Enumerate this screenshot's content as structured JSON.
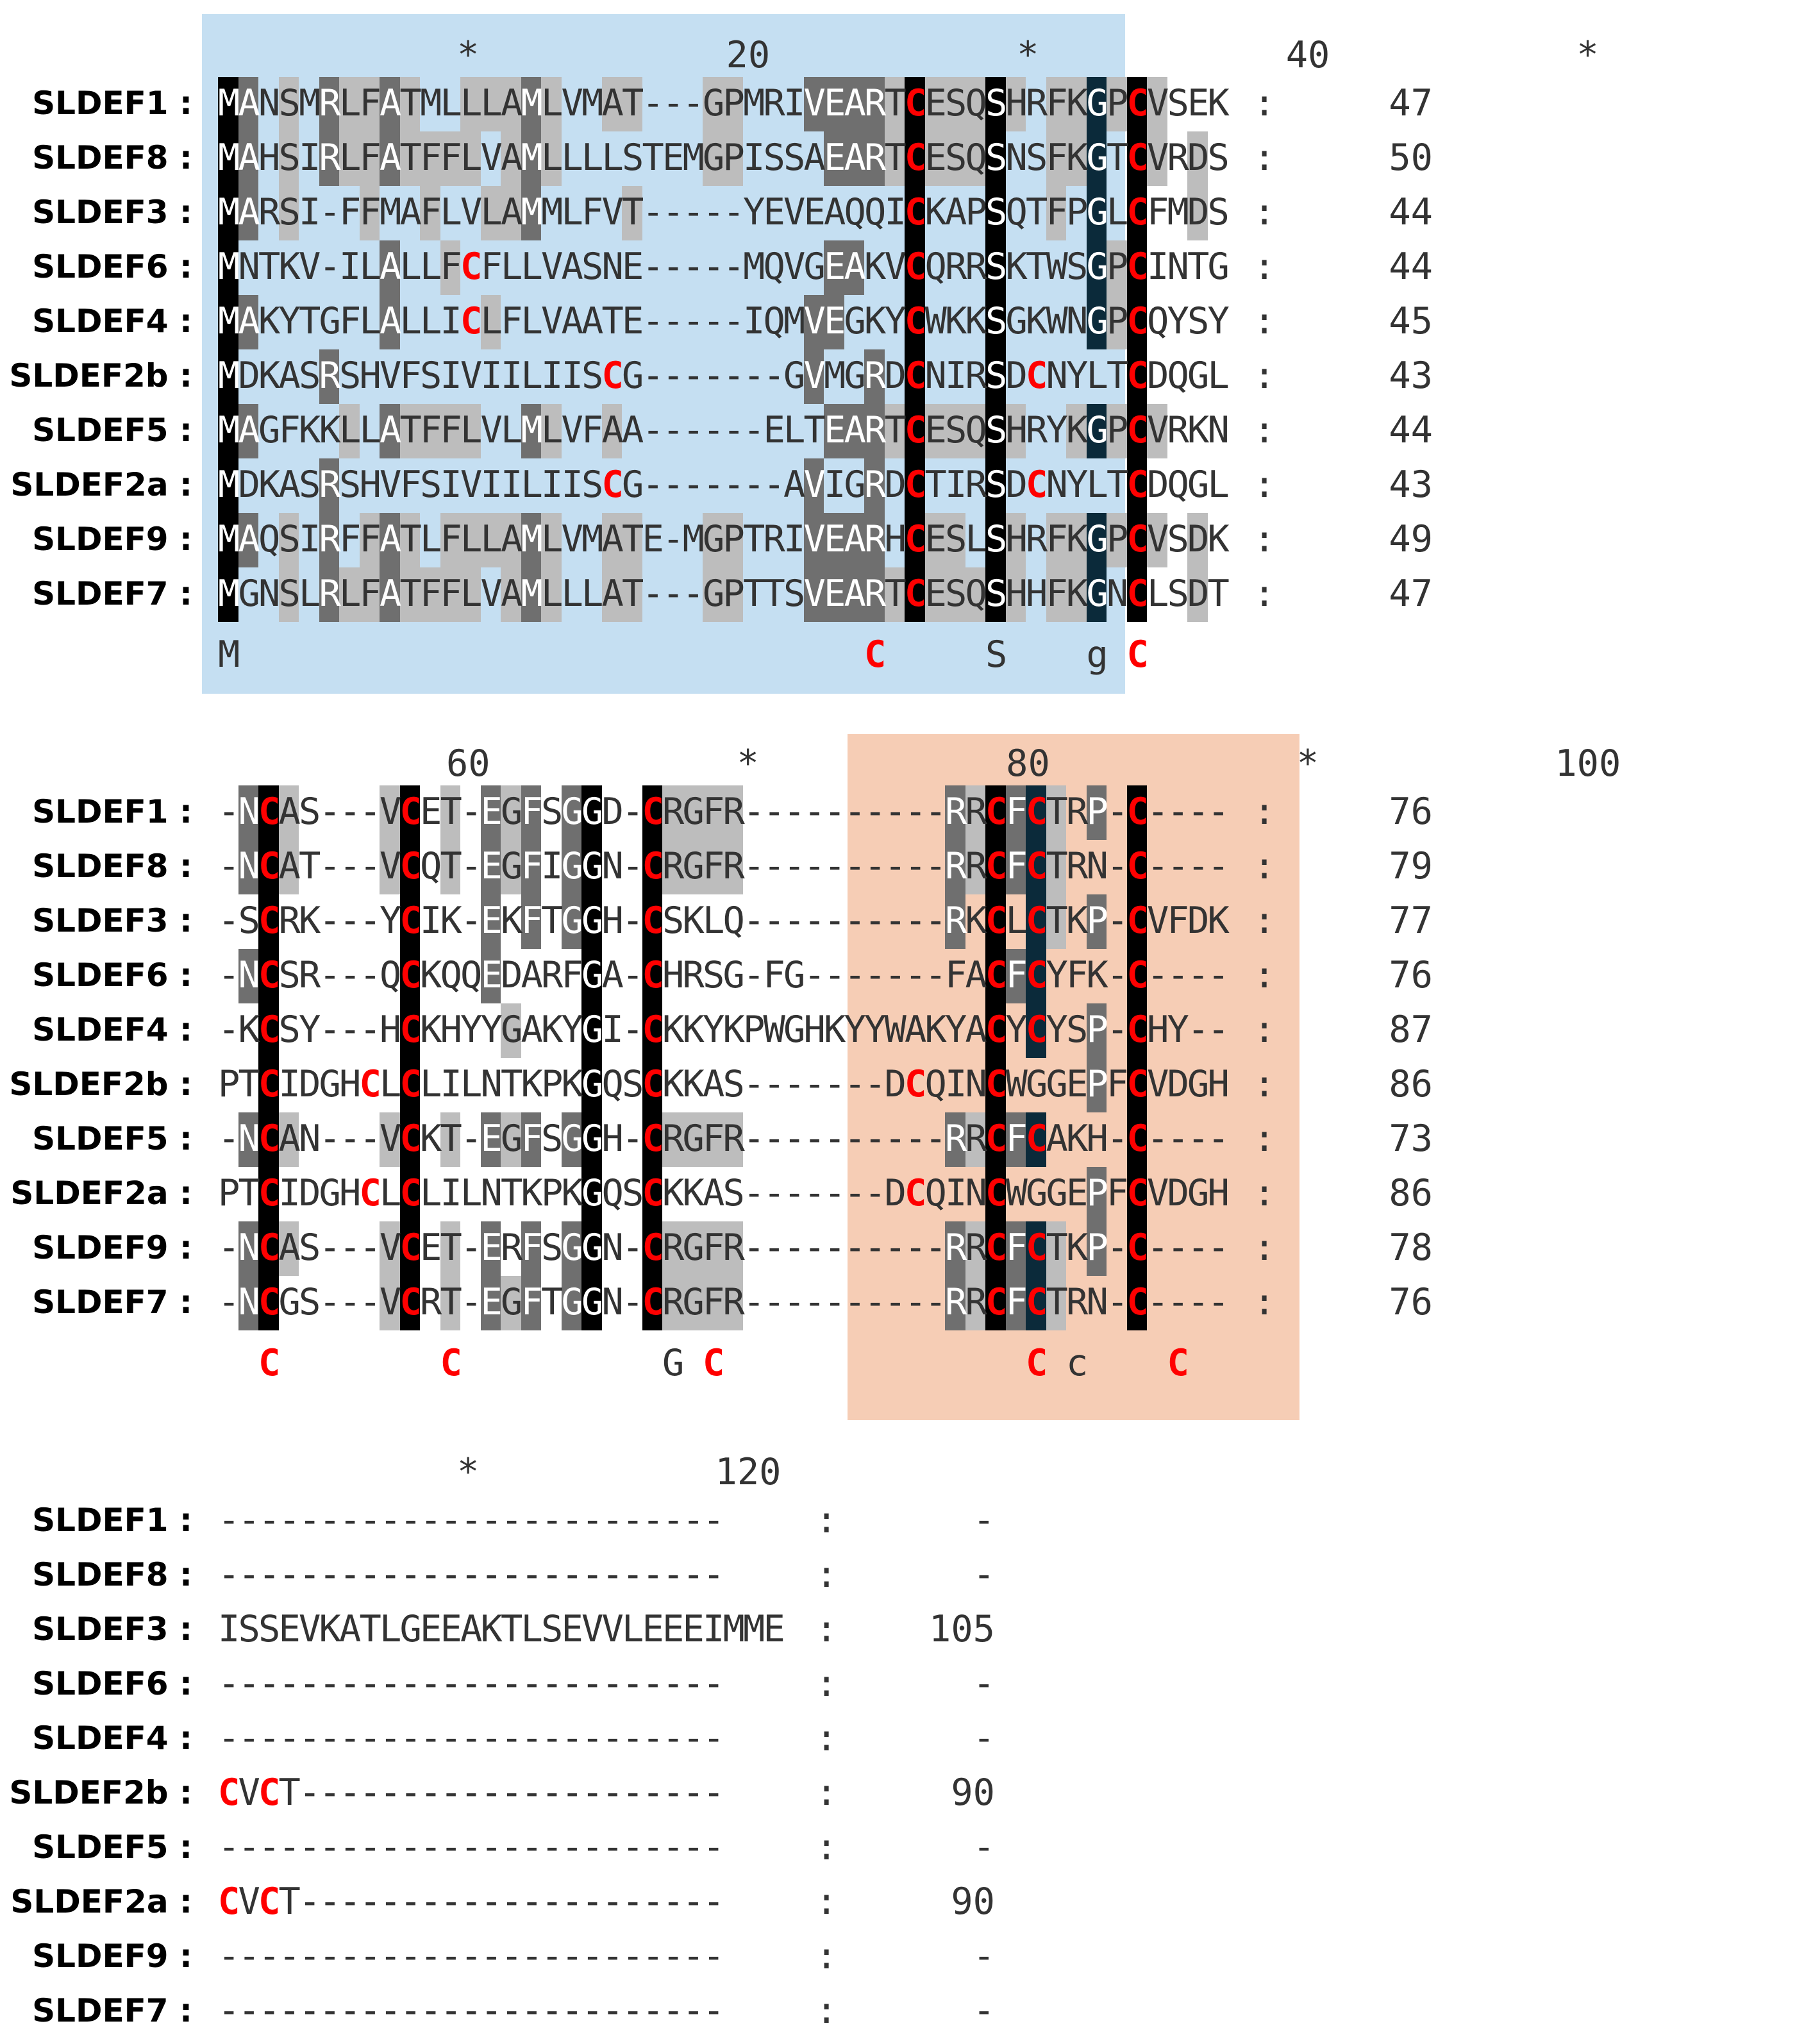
{
  "colors": {
    "black": "#000000",
    "dark": "#0b2a3a",
    "mid": "#6f6f6f",
    "light": "#bdbdbd",
    "text": "#333333",
    "cys": "#ff0000",
    "signal_region": "#c5dff2",
    "pro_region": "#f6cdb5"
  },
  "legend_note": "shading intensity encodes conservation: black = invariant, dark/mid/light grey = decreasing conservation; red C = cysteine",
  "blocks": [
    {
      "ruler": "*20*40*",
      "rows": [
        {
          "name": "SLDEF1",
          "seq": "MANSMRLFATMLLLAMLVMAT---GPMRIVEARTCESQSHRFKGPCVSEK",
          "count": "47"
        },
        {
          "name": "SLDEF8",
          "seq": "MAHSIRLFATFFLVAMLLLLSTEMGPISSAEARTCESQSNSFKGTCVRDS",
          "count": "50"
        },
        {
          "name": "SLDEF3",
          "seq": "MARSI-FFMAFLVLAMMLFVT-----YEVEAQQICKAPSQTFPGLCFMDS",
          "count": "44"
        },
        {
          "name": "SLDEF6",
          "seq": "MNTKV-ILALLFCFLLVASNE-----MQVGEAKVCQRRSKTWSGPCINTG",
          "count": "44"
        },
        {
          "name": "SLDEF4",
          "seq": "MAKYTGFLALLICLFLVAATE-----IQMVEGKYCWKKSGKWNGPCQYSY",
          "count": "45"
        },
        {
          "name": "SLDEF2b",
          "seq": "MDKASRSHVFSIVIILIISCG-------GVMGRDCNIRSDCNYLTCDQGL",
          "count": "43"
        },
        {
          "name": "SLDEF5",
          "seq": "MAGFKKLLATFFLVLMLVFAA------ELTEARTCESQSHRYKGPCVRKN",
          "count": "44"
        },
        {
          "name": "SLDEF2a",
          "seq": "MDKASRSHVFSIVIILIISCG-------AVIGRDCTIRSDCNYLTCDQGL",
          "count": "43"
        },
        {
          "name": "SLDEF9",
          "seq": "MAQSIRFFATLFLLAMLVMATE-MGPTRIVEARHCESLSHRFKGPCVSDK",
          "count": "49"
        },
        {
          "name": "SLDEF7",
          "seq": "MGNSLRLFATFFLVAMLLLAT---GPTTSVEARTCESQSHHFKGNCLSDT",
          "count": "47"
        }
      ],
      "consensus": "M                               C     S    g C    "
    },
    {
      "ruler": "60*80*100",
      "rows": [
        {
          "name": "SLDEF1",
          "seq": "-NCAS---VCET-EGFSGGD-CRGFR----------RRCFCTRP-C----",
          "count": "76"
        },
        {
          "name": "SLDEF8",
          "seq": "-NCAT---VCQT-EGFIGGN-CRGFR----------RRCFCTRN-C----",
          "count": "79"
        },
        {
          "name": "SLDEF3",
          "seq": "-SCRK---YCIK-EKFTGGH-CSKLQ----------RKCLCTKP-CVFDK",
          "count": "77"
        },
        {
          "name": "SLDEF6",
          "seq": "-NCSR---QCKQQEDARFGA-CHRSG-FG-------FACFCYFK-C----",
          "count": "76"
        },
        {
          "name": "SLDEF4",
          "seq": "-KCSY---HCKHYYGAKYGI-CKKYKPWGHKYYWAKYACYCYSP-CHY--",
          "count": "87"
        },
        {
          "name": "SLDEF2b",
          "seq": "PTCIDGHCLCLILNTKPKGQSCKKAS-------DCQINCWGGEPFCVDGH",
          "count": "86"
        },
        {
          "name": "SLDEF5",
          "seq": "-NCAN---VCKT-EGFSGGH-CRGFR----------RRCFCAKH-C----",
          "count": "73"
        },
        {
          "name": "SLDEF2a",
          "seq": "PTCIDGHCLCLILNTKPKGQSCKKAS-------DCQINCWGGEPFCVDGH",
          "count": "86"
        },
        {
          "name": "SLDEF9",
          "seq": "-NCAS---VCET-ERFSGGN-CRGFR----------RRCFCTKP-C----",
          "count": "78"
        },
        {
          "name": "SLDEF7",
          "seq": "-NCGS---VCRT-EGFTGGN-CRGFR----------RRCFCTRN-C----",
          "count": "76"
        }
      ],
      "consensus": "  C        C          G C               C c    C    "
    },
    {
      "ruler": "*120",
      "rows": [
        {
          "name": "SLDEF1",
          "seq": "-------------------------",
          "count": "-"
        },
        {
          "name": "SLDEF8",
          "seq": "-------------------------",
          "count": "-"
        },
        {
          "name": "SLDEF3",
          "seq": "ISSEVKATLGEEAKTLSEVVLEEEIMME",
          "count": "105"
        },
        {
          "name": "SLDEF6",
          "seq": "-------------------------",
          "count": "-"
        },
        {
          "name": "SLDEF4",
          "seq": "-------------------------",
          "count": "-"
        },
        {
          "name": "SLDEF2b",
          "seq": "CVCT---------------------",
          "count": "90"
        },
        {
          "name": "SLDEF5",
          "seq": "-------------------------",
          "count": "-"
        },
        {
          "name": "SLDEF2a",
          "seq": "CVCT---------------------",
          "count": "90"
        },
        {
          "name": "SLDEF9",
          "seq": "-------------------------",
          "count": "-"
        },
        {
          "name": "SLDEF7",
          "seq": "-------------------------",
          "count": "-"
        }
      ]
    }
  ]
}
